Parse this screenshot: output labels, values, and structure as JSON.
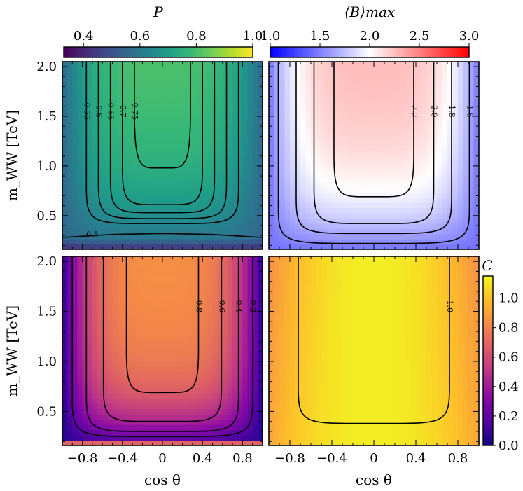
{
  "chart_data": [
    {
      "type": "heatmap",
      "panel": "top-left",
      "colorbar_title": "P",
      "colorbar_position": "top",
      "colormap": "viridis",
      "colorbar_ticks": [
        "0.4",
        "0.6",
        "0.8",
        "1.0"
      ],
      "clim": [
        0.33,
        1.0
      ],
      "ylabel": "m_WW [TeV]",
      "xlabel": "",
      "xlim": [
        -1,
        1
      ],
      "ylim": [
        0.16,
        2.05
      ],
      "yticks": [
        "0.5",
        "1.0",
        "1.5",
        "2.0"
      ],
      "contours": [
        {
          "level": 0.5,
          "label": "0.5",
          "curve": [
            [
              -1,
              0.28
            ],
            [
              -0.5,
              0.31
            ],
            [
              0,
              0.32
            ],
            [
              0.5,
              0.31
            ],
            [
              1,
              0.28
            ]
          ]
        },
        {
          "level": 0.55,
          "label": "0.55",
          "bottom": 0.42,
          "x_at_top": 0.76
        },
        {
          "level": 0.6,
          "label": "0.6",
          "bottom": 0.47,
          "x_at_top": 0.64
        },
        {
          "level": 0.65,
          "label": "0.65",
          "bottom": 0.53,
          "x_at_top": 0.52
        },
        {
          "level": 0.7,
          "label": "0.7",
          "bottom": 0.61,
          "x_at_top": 0.4
        },
        {
          "level": 0.75,
          "label": "0.75",
          "bottom": 0.98,
          "x_at_top": 0.28
        }
      ]
    },
    {
      "type": "heatmap",
      "panel": "top-right",
      "colorbar_title": "⟨B⟩max",
      "colorbar_position": "top",
      "colormap": "bwr",
      "colorbar_ticks": [
        "1.0",
        "1.5",
        "2.0",
        "2.5",
        "3.0"
      ],
      "clim": [
        1.0,
        3.0
      ],
      "xlabel": "",
      "ylabel": "",
      "xlim": [
        -1,
        1
      ],
      "ylim": [
        0.16,
        2.05
      ],
      "contours": [
        {
          "level": 1.6,
          "label": "1.6",
          "bottom": 0.22,
          "x_at_top": 0.91
        },
        {
          "level": 1.8,
          "label": "1.8",
          "bottom": 0.32,
          "x_at_top": 0.74
        },
        {
          "level": 2.0,
          "label": "2.0",
          "bottom": 0.42,
          "x_at_top": 0.57
        },
        {
          "level": 2.2,
          "label": "2.2",
          "bottom": 0.69,
          "x_at_top": 0.38
        }
      ]
    },
    {
      "type": "heatmap",
      "panel": "bottom-left",
      "colormap": "plasma",
      "shared_colorbar": "C",
      "xlabel": "cos θ",
      "ylabel": "m_WW [TeV]",
      "xlim": [
        -1,
        1
      ],
      "ylim": [
        0.16,
        2.05
      ],
      "xticks": [
        "−0.8",
        "−0.4",
        "0",
        "0.4",
        "0.8"
      ],
      "yticks": [
        "0.5",
        "1.0",
        "1.5",
        "2.0"
      ],
      "contours": [
        {
          "level": 0.2,
          "label": "0.2",
          "bottom": 0.25,
          "x_at_top": 0.9
        },
        {
          "level": 0.4,
          "label": "0.4",
          "bottom": 0.3,
          "x_at_top": 0.76
        },
        {
          "level": 0.6,
          "label": "0.6",
          "bottom": 0.4,
          "x_at_top": 0.59
        },
        {
          "level": 0.8,
          "label": "0.8",
          "bottom": 0.69,
          "x_at_top": 0.36
        }
      ]
    },
    {
      "type": "heatmap",
      "panel": "bottom-right",
      "colorbar_title": "C",
      "colorbar_position": "right",
      "colormap": "plasma",
      "colorbar_ticks": [
        "0.0",
        "0.2",
        "0.4",
        "0.6",
        "0.8",
        "1.0"
      ],
      "clim": [
        0.0,
        1.15
      ],
      "xlabel": "cos θ",
      "ylabel": "",
      "xlim": [
        -1,
        1
      ],
      "ylim": [
        0.16,
        2.05
      ],
      "xticks": [
        "−0.8",
        "−0.4",
        "0",
        "0.4",
        "0.8"
      ],
      "contours": [
        {
          "level": 1.0,
          "label": "1.0",
          "bottom": 0.38,
          "x_at_top": 0.72
        }
      ]
    }
  ]
}
